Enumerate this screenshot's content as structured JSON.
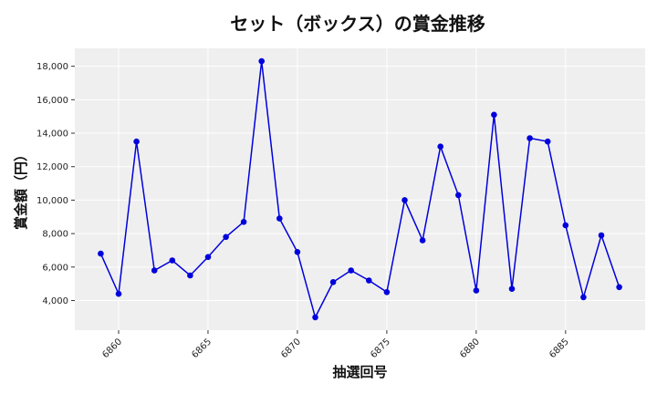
{
  "chart_data": {
    "type": "line",
    "title": "セット（ボックス）の賞金推移",
    "xlabel": "抽選回号",
    "ylabel": "賞金額（円）",
    "x": [
      6859,
      6860,
      6861,
      6862,
      6863,
      6864,
      6865,
      6866,
      6867,
      6868,
      6869,
      6870,
      6871,
      6872,
      6873,
      6874,
      6875,
      6876,
      6877,
      6878,
      6879,
      6880,
      6881,
      6882,
      6883,
      6884,
      6885,
      6886,
      6887,
      6888
    ],
    "series": [
      {
        "values": [
          6800,
          4400,
          13500,
          5800,
          6400,
          5500,
          6600,
          7800,
          8700,
          18300,
          8900,
          6900,
          3000,
          5100,
          5800,
          5200,
          4500,
          10000,
          7600,
          13200,
          10300,
          4600,
          15100,
          4700,
          13700,
          13500,
          8500,
          4200,
          7900,
          4800
        ],
        "color": "#0000dd"
      }
    ],
    "xticks": [
      6860,
      6865,
      6870,
      6875,
      6880,
      6885
    ],
    "xtick_labels": [
      "6860",
      "6865",
      "6870",
      "6875",
      "6880",
      "6885"
    ],
    "yticks": [
      4000,
      6000,
      8000,
      10000,
      12000,
      14000,
      16000,
      18000
    ],
    "ytick_labels": [
      "4,000",
      "6,000",
      "8,000",
      "10,000",
      "12,000",
      "14,000",
      "16,000",
      "18,000"
    ],
    "xlim": [
      6857.55,
      6889.45
    ],
    "ylim": [
      2230,
      19070
    ],
    "grid": true,
    "plot_background": "#efefef"
  }
}
